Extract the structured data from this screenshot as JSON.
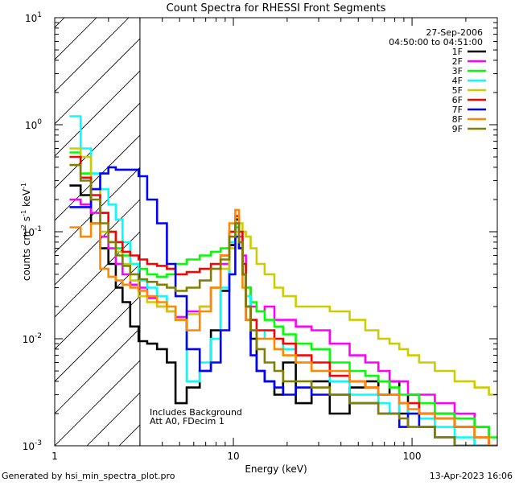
{
  "chart_data": {
    "type": "line",
    "title": "Count Spectra for RHESSI Front Segments",
    "xlabel": "Energy (keV)",
    "ylabel": "counts cm^-2 s^-1 keV^-1",
    "xscale": "log",
    "yscale": "log",
    "xlim": [
      1,
      300
    ],
    "ylim": [
      0.001,
      10
    ],
    "x_ticks": [
      {
        "value": 1,
        "label": "1"
      },
      {
        "value": 10,
        "label": "10"
      },
      {
        "value": 100,
        "label": "100"
      }
    ],
    "y_ticks": [
      {
        "value": 0.001,
        "base": "10",
        "exp": "-3"
      },
      {
        "value": 0.01,
        "base": "10",
        "exp": "-2"
      },
      {
        "value": 0.1,
        "base": "10",
        "exp": "-1"
      },
      {
        "value": 1,
        "base": "10",
        "exp": "0"
      },
      {
        "value": 10,
        "base": "10",
        "exp": "1"
      }
    ],
    "hatched_region_xmax": 3,
    "date": "27-Sep-2006",
    "time_range": "04:50:00 to 04:51:00",
    "annotations": [
      "Includes Background",
      "Att A0, FDecim 1"
    ],
    "footer_left": "Generated by hsi_min_spectra_plot.pro",
    "footer_right": "13-Apr-2023 16:06",
    "series": [
      {
        "name": "1F",
        "color": "#000000",
        "x": [
          1.3,
          1.5,
          1.7,
          1.9,
          2.1,
          2.3,
          2.5,
          2.8,
          3.1,
          3.5,
          4.0,
          4.5,
          5.0,
          6.0,
          7.0,
          8.0,
          9.0,
          10.0,
          10.5,
          11.0,
          11.5,
          12.0,
          13.0,
          14.0,
          16.0,
          18.0,
          20.0,
          25.0,
          30.0,
          40.0,
          50.0,
          60.0,
          70.0,
          80.0,
          90.0,
          100.0,
          120.0,
          150.0,
          200.0,
          250.0,
          290.0
        ],
        "y": [
          0.27,
          0.22,
          0.12,
          0.07,
          0.05,
          0.03,
          0.022,
          0.013,
          0.0095,
          0.009,
          0.008,
          0.006,
          0.0025,
          0.0035,
          0.005,
          0.012,
          0.028,
          0.075,
          0.13,
          0.07,
          0.04,
          0.02,
          0.01,
          0.005,
          0.004,
          0.003,
          0.006,
          0.0025,
          0.004,
          0.002,
          0.0035,
          0.004,
          0.003,
          0.004,
          0.002,
          0.003,
          0.002,
          0.002,
          0.0015,
          0.001,
          0.001
        ]
      },
      {
        "name": "2F",
        "color": "#ff00ff",
        "x": [
          1.3,
          1.5,
          1.7,
          1.9,
          2.1,
          2.3,
          2.5,
          2.8,
          3.1,
          3.5,
          4.0,
          4.5,
          5.0,
          6.0,
          7.0,
          8.0,
          9.0,
          10.0,
          10.5,
          11.0,
          11.5,
          12.0,
          13.0,
          14.0,
          16.0,
          18.0,
          20.0,
          25.0,
          30.0,
          40.0,
          50.0,
          60.0,
          70.0,
          80.0,
          90.0,
          100.0,
          120.0,
          150.0,
          200.0,
          250.0,
          290.0
        ],
        "y": [
          0.2,
          0.18,
          0.15,
          0.09,
          0.07,
          0.05,
          0.04,
          0.032,
          0.03,
          0.024,
          0.02,
          0.018,
          0.016,
          0.018,
          0.02,
          0.03,
          0.05,
          0.08,
          0.12,
          0.09,
          0.06,
          0.03,
          0.02,
          0.018,
          0.02,
          0.015,
          0.015,
          0.013,
          0.012,
          0.009,
          0.007,
          0.006,
          0.005,
          0.004,
          0.004,
          0.003,
          0.003,
          0.0025,
          0.002,
          0.0015,
          0.001
        ]
      },
      {
        "name": "3F",
        "color": "#00ff00",
        "x": [
          1.3,
          1.5,
          1.7,
          1.9,
          2.1,
          2.3,
          2.5,
          2.8,
          3.1,
          3.5,
          4.0,
          4.5,
          5.0,
          6.0,
          7.0,
          8.0,
          9.0,
          10.0,
          10.5,
          11.0,
          11.5,
          12.0,
          13.0,
          14.0,
          16.0,
          18.0,
          20.0,
          25.0,
          30.0,
          40.0,
          50.0,
          60.0,
          70.0,
          80.0,
          90.0,
          100.0,
          120.0,
          150.0,
          200.0,
          250.0,
          290.0
        ],
        "y": [
          0.55,
          0.35,
          0.25,
          0.15,
          0.1,
          0.07,
          0.06,
          0.05,
          0.045,
          0.04,
          0.038,
          0.04,
          0.05,
          0.055,
          0.06,
          0.065,
          0.07,
          0.1,
          0.11,
          0.08,
          0.05,
          0.03,
          0.022,
          0.018,
          0.015,
          0.013,
          0.011,
          0.009,
          0.008,
          0.006,
          0.005,
          0.0045,
          0.004,
          0.0035,
          0.003,
          0.003,
          0.0025,
          0.002,
          0.0018,
          0.0015,
          0.0012
        ]
      },
      {
        "name": "4F",
        "color": "#00ffff",
        "x": [
          1.3,
          1.5,
          1.7,
          1.9,
          2.1,
          2.3,
          2.5,
          2.8,
          3.1,
          3.5,
          4.0,
          4.5,
          5.0,
          6.0,
          7.0,
          8.0,
          9.0,
          10.0,
          10.5,
          11.0,
          11.5,
          12.0,
          13.0,
          14.0,
          16.0,
          18.0,
          20.0,
          25.0,
          30.0,
          40.0,
          50.0,
          60.0,
          70.0,
          80.0,
          90.0,
          100.0,
          120.0,
          150.0,
          200.0,
          250.0,
          290.0
        ],
        "y": [
          1.2,
          0.6,
          0.35,
          0.25,
          0.18,
          0.13,
          0.08,
          0.05,
          0.035,
          0.03,
          0.025,
          0.02,
          0.015,
          0.004,
          0.006,
          0.01,
          0.03,
          0.08,
          0.12,
          0.1,
          0.05,
          0.025,
          0.015,
          0.01,
          0.012,
          0.01,
          0.008,
          0.006,
          0.005,
          0.004,
          0.003,
          0.003,
          0.0025,
          0.002,
          0.0025,
          0.002,
          0.0018,
          0.0015,
          0.0012,
          0.001,
          0.001
        ]
      },
      {
        "name": "5F",
        "color": "#cccc00",
        "x": [
          1.3,
          1.5,
          1.7,
          1.9,
          2.1,
          2.3,
          2.5,
          2.8,
          3.1,
          3.5,
          4.0,
          4.5,
          5.0,
          6.0,
          7.0,
          8.0,
          9.0,
          10.0,
          10.5,
          11.0,
          11.5,
          12.0,
          13.0,
          14.0,
          16.0,
          18.0,
          20.0,
          25.0,
          30.0,
          40.0,
          50.0,
          60.0,
          70.0,
          80.0,
          90.0,
          100.0,
          120.0,
          150.0,
          200.0,
          250.0,
          290.0
        ],
        "y": [
          0.6,
          0.5,
          0.25,
          0.1,
          0.08,
          0.065,
          0.05,
          0.035,
          0.025,
          0.022,
          0.02,
          0.018,
          0.015,
          0.017,
          0.02,
          0.03,
          0.045,
          0.07,
          0.1,
          0.12,
          0.1,
          0.09,
          0.07,
          0.05,
          0.04,
          0.03,
          0.025,
          0.02,
          0.02,
          0.018,
          0.015,
          0.012,
          0.01,
          0.009,
          0.008,
          0.007,
          0.006,
          0.005,
          0.004,
          0.0035,
          0.003
        ]
      },
      {
        "name": "6F",
        "color": "#ff0000",
        "x": [
          1.3,
          1.5,
          1.7,
          1.9,
          2.1,
          2.3,
          2.5,
          2.8,
          3.1,
          3.5,
          4.0,
          4.5,
          5.0,
          6.0,
          7.0,
          8.0,
          9.0,
          10.0,
          10.5,
          11.0,
          11.5,
          12.0,
          13.0,
          14.0,
          16.0,
          18.0,
          20.0,
          25.0,
          30.0,
          40.0,
          50.0,
          60.0,
          70.0,
          80.0,
          90.0,
          100.0,
          120.0,
          150.0,
          200.0,
          250.0,
          290.0
        ],
        "y": [
          0.5,
          0.32,
          0.22,
          0.15,
          0.1,
          0.08,
          0.065,
          0.06,
          0.055,
          0.05,
          0.048,
          0.045,
          0.04,
          0.042,
          0.045,
          0.05,
          0.06,
          0.1,
          0.14,
          0.1,
          0.05,
          0.02,
          0.015,
          0.012,
          0.012,
          0.01,
          0.009,
          0.007,
          0.006,
          0.0045,
          0.004,
          0.0035,
          0.003,
          0.003,
          0.0025,
          0.0025,
          0.002,
          0.0018,
          0.0015,
          0.0012,
          0.001
        ]
      },
      {
        "name": "7F",
        "color": "#0000ff",
        "x": [
          1.3,
          1.5,
          1.7,
          1.9,
          2.1,
          2.3,
          2.5,
          2.8,
          3.1,
          3.5,
          4.0,
          4.5,
          5.0,
          6.0,
          7.0,
          8.0,
          9.0,
          10.0,
          10.5,
          11.0,
          11.5,
          12.0,
          13.0,
          14.0,
          16.0,
          18.0,
          20.0,
          25.0,
          30.0,
          40.0,
          50.0,
          60.0,
          70.0,
          80.0,
          90.0,
          100.0,
          120.0,
          150.0,
          200.0,
          250.0,
          290.0
        ],
        "y": [
          0.17,
          0.17,
          0.25,
          0.35,
          0.4,
          0.38,
          0.38,
          0.38,
          0.33,
          0.2,
          0.12,
          0.05,
          0.025,
          0.008,
          0.005,
          0.006,
          0.012,
          0.04,
          0.09,
          0.07,
          0.04,
          0.015,
          0.007,
          0.005,
          0.004,
          0.0035,
          0.003,
          0.0035,
          0.003,
          0.003,
          0.0025,
          0.0025,
          0.002,
          0.002,
          0.0015,
          0.002,
          0.0015,
          0.0012,
          0.001,
          0.001,
          0.001
        ]
      },
      {
        "name": "8F",
        "color": "#ff8800",
        "x": [
          1.3,
          1.5,
          1.7,
          1.9,
          2.1,
          2.3,
          2.5,
          2.8,
          3.1,
          3.5,
          4.0,
          4.5,
          5.0,
          6.0,
          7.0,
          8.0,
          9.0,
          10.0,
          10.5,
          11.0,
          11.5,
          12.0,
          13.0,
          14.0,
          16.0,
          18.0,
          20.0,
          25.0,
          30.0,
          40.0,
          50.0,
          60.0,
          70.0,
          80.0,
          90.0,
          100.0,
          120.0,
          150.0,
          200.0,
          250.0,
          290.0
        ],
        "y": [
          0.11,
          0.09,
          0.12,
          0.045,
          0.038,
          0.035,
          0.032,
          0.03,
          0.028,
          0.025,
          0.022,
          0.02,
          0.015,
          0.012,
          0.018,
          0.03,
          0.06,
          0.12,
          0.16,
          0.08,
          0.03,
          0.015,
          0.012,
          0.01,
          0.01,
          0.008,
          0.007,
          0.006,
          0.005,
          0.005,
          0.004,
          0.0035,
          0.003,
          0.003,
          0.0025,
          0.0022,
          0.002,
          0.0018,
          0.0015,
          0.0012,
          0.001
        ]
      },
      {
        "name": "9F",
        "color": "#808000",
        "x": [
          1.3,
          1.5,
          1.7,
          1.9,
          2.1,
          2.3,
          2.5,
          2.8,
          3.1,
          3.5,
          4.0,
          4.5,
          5.0,
          6.0,
          7.0,
          8.0,
          9.0,
          10.0,
          10.5,
          11.0,
          11.5,
          12.0,
          13.0,
          14.0,
          16.0,
          18.0,
          20.0,
          25.0,
          30.0,
          40.0,
          50.0,
          60.0,
          70.0,
          80.0,
          90.0,
          100.0,
          120.0,
          150.0,
          200.0,
          250.0,
          290.0
        ],
        "y": [
          0.42,
          0.3,
          0.2,
          0.12,
          0.08,
          0.06,
          0.048,
          0.04,
          0.036,
          0.034,
          0.032,
          0.03,
          0.028,
          0.03,
          0.035,
          0.045,
          0.055,
          0.09,
          0.12,
          0.08,
          0.04,
          0.02,
          0.012,
          0.008,
          0.006,
          0.005,
          0.004,
          0.004,
          0.0035,
          0.003,
          0.0025,
          0.0025,
          0.002,
          0.002,
          0.0018,
          0.0015,
          0.0015,
          0.0012,
          0.001,
          0.001,
          0.001
        ]
      }
    ]
  }
}
